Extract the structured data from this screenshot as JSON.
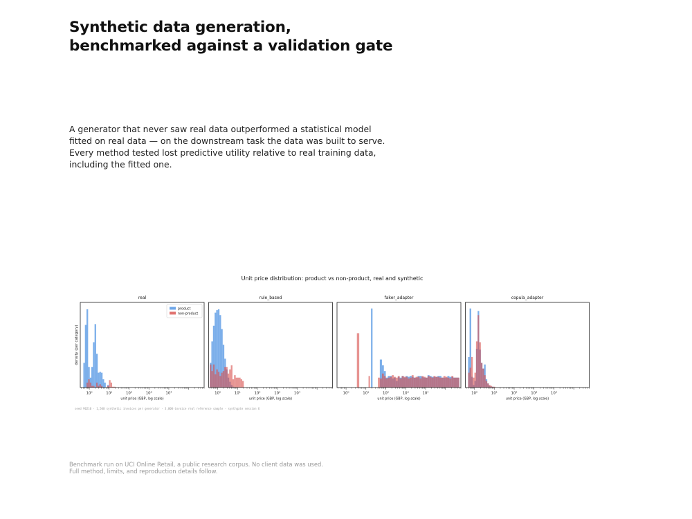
{
  "page": {
    "title": "Synthetic data generation, benchmarked against a validation gate",
    "lede": "A generator that never saw real data outperformed a statistical model fitted on real data — on the downstream task the data was built to serve. Every method tested lost predictive utility relative to real training data, including the fitted one.",
    "footnote": "Benchmark run on UCI Online Retail, a public research corpus. No client data was used. Full method, limits, and reproduction details follow."
  },
  "chart_data": {
    "type": "bar",
    "title": "Unit price distribution: product vs non-product, real and synthetic",
    "ylabel": "density (per category)",
    "xlabel": "unit price (GBP, log scale)",
    "x_scale": "log",
    "xlim": [
      0.35,
      600000
    ],
    "x_ticks": [
      "10⁰",
      "10¹",
      "10²",
      "10³",
      "10⁴"
    ],
    "ylim": [
      0,
      1
    ],
    "grid": false,
    "legend": {
      "placement": "top-right",
      "panel": "real",
      "entries": [
        "product",
        "non-product"
      ]
    },
    "colors": {
      "product": "#4a90e2",
      "non_product": "#d9534f",
      "overlap": "#8e3a4e"
    },
    "caption": "seed 90210 · 1,500 synthetic invoices per generator · 3,000-invoice real reference sample · synthgate session 6",
    "panels": [
      {
        "name": "real",
        "bins": [
          [
            0.5,
            0.6
          ],
          [
            0.6,
            0.72
          ],
          [
            0.72,
            0.87
          ],
          [
            0.87,
            1.05
          ],
          [
            1.05,
            1.26
          ],
          [
            1.26,
            1.52
          ],
          [
            1.52,
            1.83
          ],
          [
            1.83,
            2.2
          ],
          [
            2.2,
            2.65
          ],
          [
            2.65,
            3.2
          ],
          [
            3.2,
            3.85
          ],
          [
            3.85,
            4.64
          ],
          [
            4.64,
            5.58
          ],
          [
            5.58,
            6.72
          ],
          [
            8.0,
            9.7
          ],
          [
            9.7,
            11.7
          ],
          [
            11.7,
            14.0
          ],
          [
            14.0,
            17.0
          ],
          [
            17.0,
            20.5
          ]
        ],
        "product": [
          0.3,
          0.76,
          0.95,
          0.25,
          0.12,
          0.25,
          0.55,
          0.77,
          0.41,
          0.18,
          0.19,
          0.18,
          0.1,
          0.06,
          0.03,
          0,
          0,
          0,
          0
        ],
        "non_product": [
          0,
          0,
          0.06,
          0.1,
          0.06,
          0.02,
          0.02,
          0,
          0.06,
          0.02,
          0.04,
          0.02,
          0,
          0,
          0.02,
          0.09,
          0.06,
          0.01,
          0.01
        ]
      },
      {
        "name": "rule_based",
        "bins": [
          [
            0.4,
            0.48
          ],
          [
            0.48,
            0.58
          ],
          [
            0.58,
            0.7
          ],
          [
            0.7,
            0.84
          ],
          [
            0.84,
            1.02
          ],
          [
            1.02,
            1.23
          ],
          [
            1.23,
            1.48
          ],
          [
            1.48,
            1.78
          ],
          [
            1.78,
            2.15
          ],
          [
            2.15,
            2.6
          ],
          [
            2.6,
            3.14
          ],
          [
            3.14,
            3.79
          ],
          [
            3.79,
            4.58
          ],
          [
            4.58,
            5.52
          ],
          [
            5.52,
            6.67
          ],
          [
            6.67,
            8.05
          ],
          [
            8.05,
            9.72
          ],
          [
            9.72,
            11.74
          ],
          [
            11.74,
            14.17
          ],
          [
            14.17,
            17.1
          ],
          [
            17.1,
            20.6
          ]
        ],
        "product": [
          0.3,
          0.56,
          0.75,
          0.91,
          0.94,
          0.95,
          0.88,
          0.71,
          0.52,
          0.35,
          0.22,
          0.12,
          0.07,
          0.03,
          0.01,
          0,
          0,
          0,
          0,
          0,
          0
        ],
        "non_product": [
          0.28,
          0.2,
          0.28,
          0.16,
          0.22,
          0.19,
          0.14,
          0.18,
          0.2,
          0.25,
          0.25,
          0.17,
          0.22,
          0.27,
          0.1,
          0.15,
          0.12,
          0.12,
          0.12,
          0.1,
          0.08
        ]
      },
      {
        "name": "faker_adapter",
        "bins": [
          [
            3.5,
            4.6
          ],
          [
            13.5,
            16
          ],
          [
            18,
            21.5
          ],
          [
            21.5,
            25
          ],
          [
            40,
            50
          ],
          [
            50,
            64
          ],
          [
            64,
            80
          ],
          [
            80,
            100
          ],
          [
            100,
            126
          ],
          [
            126,
            158
          ],
          [
            158,
            200
          ],
          [
            200,
            250
          ],
          [
            250,
            316
          ],
          [
            316,
            400
          ],
          [
            400,
            500
          ],
          [
            500,
            630
          ],
          [
            630,
            800
          ],
          [
            800,
            1000
          ],
          [
            1000,
            1260
          ],
          [
            1260,
            1580
          ],
          [
            1580,
            2000
          ],
          [
            2000,
            2510
          ],
          [
            2510,
            3160
          ],
          [
            3160,
            3980
          ],
          [
            3980,
            5010
          ],
          [
            5010,
            6310
          ],
          [
            6310,
            7940
          ],
          [
            7940,
            10000
          ],
          [
            10000,
            12600
          ],
          [
            12600,
            15800
          ],
          [
            15800,
            20000
          ],
          [
            20000,
            25100
          ],
          [
            25100,
            31600
          ],
          [
            31600,
            39800
          ],
          [
            39800,
            50100
          ],
          [
            50100,
            63100
          ],
          [
            63100,
            79400
          ],
          [
            79400,
            100000
          ],
          [
            100000,
            126000
          ],
          [
            126000,
            158000
          ],
          [
            158000,
            200000
          ],
          [
            200000,
            251000
          ],
          [
            251000,
            316000
          ],
          [
            316000,
            398000
          ],
          [
            398000,
            501000
          ]
        ],
        "product": [
          0,
          0,
          0.96,
          0,
          0,
          0.34,
          0.27,
          0.2,
          0.12,
          0.14,
          0.14,
          0.11,
          0.12,
          0.08,
          0.13,
          0.12,
          0.14,
          0.12,
          0.14,
          0.13,
          0.14,
          0.13,
          0.12,
          0.12,
          0.14,
          0.14,
          0.13,
          0.12,
          0.12,
          0.15,
          0.14,
          0.13,
          0.13,
          0.13,
          0.14,
          0.14,
          0.12,
          0.12,
          0.12,
          0.14,
          0.13,
          0.13,
          0.12,
          0.12,
          0.12
        ],
        "non_product": [
          0.66,
          0.14,
          0,
          0,
          0.12,
          0.11,
          0.17,
          0.14,
          0.11,
          0.12,
          0.13,
          0.15,
          0.13,
          0.12,
          0.14,
          0.11,
          0.14,
          0.13,
          0.13,
          0.11,
          0.12,
          0.15,
          0.12,
          0.13,
          0.13,
          0.11,
          0.14,
          0.13,
          0.12,
          0.14,
          0.13,
          0.12,
          0.14,
          0.13,
          0.13,
          0.12,
          0.12,
          0.14,
          0.13,
          0.12,
          0.11,
          0.14,
          0.12,
          0.12,
          0.12
        ]
      },
      {
        "name": "copula_adapter",
        "bins": [
          [
            0.48,
            0.57
          ],
          [
            0.57,
            0.69
          ],
          [
            0.69,
            0.83
          ],
          [
            0.83,
            1.0
          ],
          [
            1.0,
            1.2
          ],
          [
            1.2,
            1.45
          ],
          [
            1.45,
            1.74
          ],
          [
            1.74,
            2.1
          ],
          [
            2.1,
            2.53
          ],
          [
            2.53,
            3.05
          ],
          [
            3.05,
            3.67
          ],
          [
            3.67,
            4.42
          ],
          [
            4.42,
            5.32
          ],
          [
            5.32,
            6.41
          ],
          [
            6.41,
            7.72
          ],
          [
            7.72,
            9.3
          ],
          [
            9.3,
            11.2
          ]
        ],
        "product": [
          0.37,
          0.96,
          0.13,
          0.03,
          0.08,
          0.47,
          0.93,
          0.46,
          0.3,
          0.23,
          0.28,
          0.1,
          0.05,
          0.02,
          0.01,
          0.01,
          0
        ],
        "non_product": [
          0.18,
          0.24,
          0.37,
          0.12,
          0.18,
          0.56,
          0.88,
          0.55,
          0.3,
          0.23,
          0.15,
          0.08,
          0.05,
          0.03,
          0.02,
          0.01,
          0.01
        ]
      }
    ]
  }
}
